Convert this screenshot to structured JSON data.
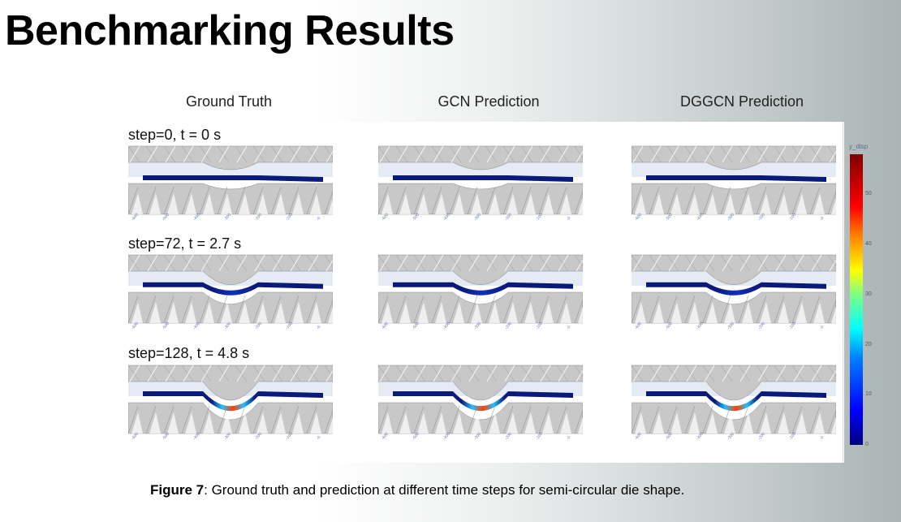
{
  "slide_title": "Benchmarking Results",
  "columns": [
    "Ground Truth",
    "GCN Prediction",
    "DGGCN Prediction"
  ],
  "rows": [
    {
      "label": "step=0, t = 0 s",
      "deformation": 0
    },
    {
      "label": "step=72, t = 2.7 s",
      "deformation": 0.55
    },
    {
      "label": "step=128, t = 4.8 s",
      "deformation": 1
    }
  ],
  "colorbar": {
    "title": "y_disp",
    "ticks": [
      "0",
      "10",
      "20",
      "30",
      "40",
      "50"
    ],
    "range": [
      0,
      58
    ],
    "colormap": "jet"
  },
  "caption": {
    "bold": "Figure 7",
    "text": ": Ground truth and prediction at different time steps for semi-circular die shape."
  },
  "colors": {
    "plate": "#0a1a7a",
    "mesh": "#c8c8c8"
  }
}
